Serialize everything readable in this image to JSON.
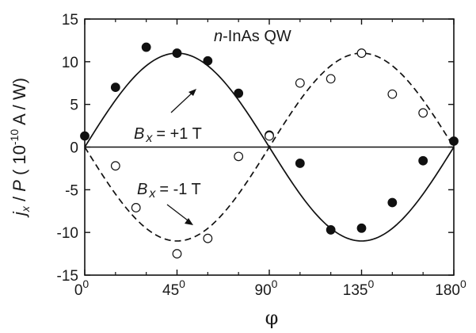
{
  "chart_data": {
    "type": "scatter",
    "annotation": "n-InAs QW",
    "annotation_prefix": "n",
    "annotation_suffix": "-InAs QW",
    "xlabel": "φ",
    "ylabel": "j_x / P ( 10^-10 A / W)",
    "ylabel_parts": {
      "j": "j",
      "sub": "x",
      "mid": " / ",
      "P": "P",
      "open": " ( 10",
      "exp": "-10",
      "unit": " A / W)"
    },
    "xlim": [
      0,
      180
    ],
    "ylim": [
      -15,
      15
    ],
    "xticks": [
      {
        "value": 0,
        "base": "0",
        "sup": "0"
      },
      {
        "value": 45,
        "base": "45",
        "sup": "0"
      },
      {
        "value": 90,
        "base": "90",
        "sup": "0"
      },
      {
        "value": 135,
        "base": "135",
        "sup": "0"
      },
      {
        "value": 180,
        "base": "180",
        "sup": "0"
      }
    ],
    "yticks": [
      15,
      10,
      5,
      0,
      -5,
      -10,
      -15
    ],
    "grid": false,
    "curves": [
      {
        "label_B": "B",
        "label_sub": "x",
        "label_value": "= +1 T",
        "amplitude": 11,
        "style": "solid",
        "color": "#111111"
      },
      {
        "label_B": "B",
        "label_sub": "x",
        "label_value": "= -1 T",
        "amplitude": -11,
        "style": "dashed",
        "color": "#111111"
      }
    ],
    "series": [
      {
        "marker": "filled-circle",
        "x": [
          0,
          15,
          30,
          45,
          60,
          75,
          90,
          105,
          120,
          135,
          150,
          165,
          180
        ],
        "y": [
          1.3,
          7.0,
          11.7,
          11.0,
          10.1,
          6.3,
          1.4,
          -1.9,
          -9.7,
          -9.5,
          -6.5,
          -1.6,
          0.7
        ]
      },
      {
        "marker": "open-circle",
        "x": [
          15,
          25,
          45,
          60,
          75,
          90,
          105,
          120,
          135,
          150,
          165
        ],
        "y": [
          -2.2,
          -7.1,
          -12.5,
          -10.7,
          -1.1,
          1.3,
          7.5,
          8.0,
          11.0,
          6.2,
          4.0
        ]
      }
    ]
  }
}
